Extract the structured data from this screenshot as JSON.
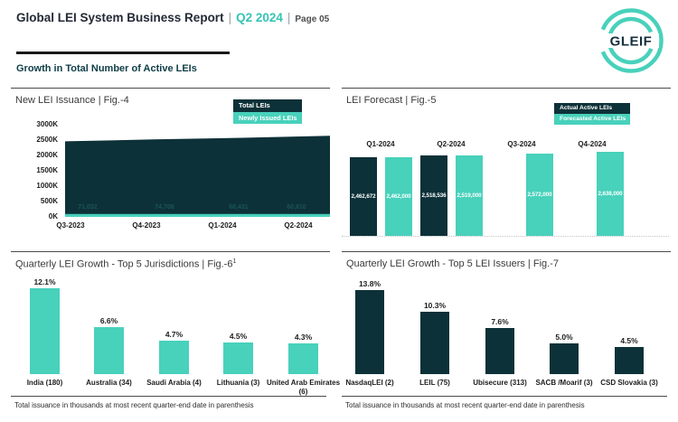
{
  "header": {
    "title": "Global LEI System Business Report",
    "separator": "|",
    "period": "Q2 2024",
    "page": "Page 05",
    "section_title": "Growth in Total Number of Active LEIs",
    "logo_text": "GLEIF"
  },
  "colors": {
    "teal": "#48d1bb",
    "dark": "#0d3138",
    "accent_text": "#35c4b5",
    "label_dark": "#1d1d1d"
  },
  "footnote": "Total issuance in thousands at most recent quarter-end date in parenthesis",
  "chart_data": [
    {
      "id": "fig4",
      "type": "area",
      "title": "New LEI Issuance | Fig.-4",
      "legend": [
        "Total LEIs",
        "Newly Issued LEIs"
      ],
      "x": [
        "Q3-2023",
        "Q4-2023",
        "Q1-2024",
        "Q2-2024"
      ],
      "series": [
        {
          "name": "Total LEIs",
          "color": "#0d3138",
          "values": [
            2460000,
            2520000,
            2575000,
            2640000
          ]
        },
        {
          "name": "Newly Issued LEIs",
          "color": "#48d1bb",
          "values": [
            71032,
            74708,
            68431,
            60810
          ],
          "labels": [
            "71,032",
            "74,708",
            "68,431",
            "60,810"
          ]
        }
      ],
      "ylim": [
        0,
        3000000
      ],
      "yticks": [
        "0K",
        "500K",
        "1000K",
        "1500K",
        "2000K",
        "2500K",
        "3000K"
      ],
      "legend_position": "top-right",
      "grid": false
    },
    {
      "id": "fig5",
      "type": "bar",
      "title": "LEI Forecast | Fig.-5",
      "legend": [
        "Actual Active LEIs",
        "Forecasted Active LEIs"
      ],
      "categories": [
        "Q1-2024",
        "Q2-2024",
        "Q3-2024",
        "Q4-2024"
      ],
      "series": [
        {
          "name": "Actual Active LEIs",
          "color": "#0d3138",
          "values": [
            2462672,
            2518536,
            null,
            null
          ],
          "labels": [
            "2,462,672",
            "2,518,536",
            "",
            ""
          ]
        },
        {
          "name": "Forecasted Active LEIs",
          "color": "#48d1bb",
          "values": [
            2462000,
            2519000,
            2572000,
            2638000
          ],
          "labels": [
            "2,462,000",
            "2,519,000",
            "2,572,000",
            "2,638,000"
          ]
        }
      ],
      "legend_position": "top-right",
      "category_labels_position": "above-bars",
      "grid": false
    },
    {
      "id": "fig6",
      "type": "bar",
      "title": "Quarterly LEI Growth - Top 5 Jurisdictions | Fig.-6",
      "title_superscript": "1",
      "categories": [
        "India (180)",
        "Australia (34)",
        "Saudi Arabia (4)",
        "Lithuania (3)",
        "United Arab Emirates (6)"
      ],
      "values": [
        12.1,
        6.6,
        4.7,
        4.5,
        4.3
      ],
      "labels": [
        "12.1%",
        "6.6%",
        "4.7%",
        "4.5%",
        "4.3%"
      ],
      "color": "#48d1bb",
      "grid": false
    },
    {
      "id": "fig7",
      "type": "bar",
      "title": "Quarterly LEI Growth - Top 5 LEI Issuers | Fig.-7",
      "categories": [
        "NasdaqLEI (2)",
        "LEIL (75)",
        "Ubisecure (313)",
        "SACB /Moarif (3)",
        "CSD Slovakia (3)"
      ],
      "values": [
        13.8,
        10.3,
        7.6,
        5.0,
        4.5
      ],
      "labels": [
        "13.8%",
        "10.3%",
        "7.6%",
        "5.0%",
        "4.5%"
      ],
      "color": "#0d3138",
      "grid": false
    }
  ]
}
